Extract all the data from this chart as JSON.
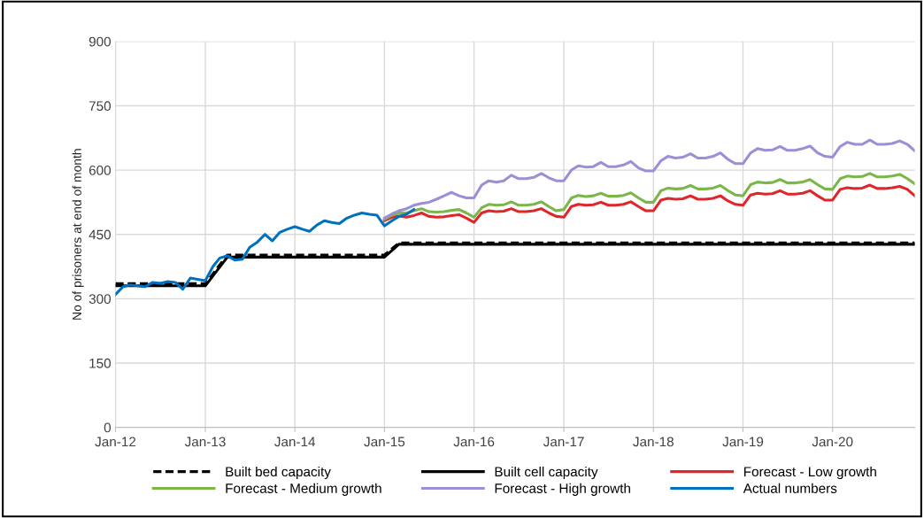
{
  "chart_data": {
    "type": "line",
    "ylabel": "No of prisoners at end of month",
    "ylim": [
      0,
      900
    ],
    "yticks": [
      0,
      150,
      300,
      450,
      600,
      750,
      900
    ],
    "xlim": [
      "2012-01",
      "2020-12"
    ],
    "xticks": [
      {
        "value": "2012-01",
        "label": "Jan-12"
      },
      {
        "value": "2013-01",
        "label": "Jan-13"
      },
      {
        "value": "2014-01",
        "label": "Jan-14"
      },
      {
        "value": "2015-01",
        "label": "Jan-15"
      },
      {
        "value": "2016-01",
        "label": "Jan-16"
      },
      {
        "value": "2017-01",
        "label": "Jan-17"
      },
      {
        "value": "2018-01",
        "label": "Jan-18"
      },
      {
        "value": "2019-01",
        "label": "Jan-19"
      },
      {
        "value": "2020-01",
        "label": "Jan-20"
      }
    ],
    "grid": true,
    "legend": "bottom",
    "marker": "none",
    "x": [
      "2015-01",
      "2015-02",
      "2015-03",
      "2015-04",
      "2015-05",
      "2015-06",
      "2015-07",
      "2015-08",
      "2015-09",
      "2015-10",
      "2015-11",
      "2015-12",
      "2016-01",
      "2016-02",
      "2016-03",
      "2016-04",
      "2016-05",
      "2016-06",
      "2016-07",
      "2016-08",
      "2016-09",
      "2016-10",
      "2016-11",
      "2016-12",
      "2017-01",
      "2017-02",
      "2017-03",
      "2017-04",
      "2017-05",
      "2017-06",
      "2017-07",
      "2017-08",
      "2017-09",
      "2017-10",
      "2017-11",
      "2017-12",
      "2018-01",
      "2018-02",
      "2018-03",
      "2018-04",
      "2018-05",
      "2018-06",
      "2018-07",
      "2018-08",
      "2018-09",
      "2018-10",
      "2018-11",
      "2018-12",
      "2019-01",
      "2019-02",
      "2019-03",
      "2019-04",
      "2019-05",
      "2019-06",
      "2019-07",
      "2019-08",
      "2019-09",
      "2019-10",
      "2019-11",
      "2019-12",
      "2020-01",
      "2020-02",
      "2020-03",
      "2020-04",
      "2020-05",
      "2020-06",
      "2020-07",
      "2020-08",
      "2020-09",
      "2020-10",
      "2020-11",
      "2020-12"
    ],
    "series": [
      {
        "name": "Built bed capacity",
        "color": "#000000",
        "line_style": "dashed",
        "x": [
          "2012-01",
          "2013-01",
          "2013-04",
          "2015-01",
          "2015-03",
          "2020-12"
        ],
        "values": [
          335,
          335,
          402,
          402,
          430,
          430
        ]
      },
      {
        "name": "Built cell capacity",
        "color": "#000000",
        "line_style": "solid",
        "x": [
          "2012-01",
          "2013-01",
          "2013-04",
          "2015-01",
          "2015-03",
          "2020-12"
        ],
        "values": [
          330,
          330,
          397,
          397,
          427,
          427
        ]
      },
      {
        "name": "Forecast - Low growth",
        "color": "#e0262b",
        "line_style": "solid",
        "values": [
          482,
          490,
          493,
          490,
          494,
          500,
          492,
          490,
          491,
          494,
          496,
          488,
          478,
          500,
          505,
          503,
          504,
          510,
          503,
          503,
          505,
          510,
          500,
          492,
          490,
          515,
          520,
          518,
          519,
          525,
          518,
          518,
          520,
          526,
          515,
          505,
          505,
          530,
          534,
          532,
          533,
          540,
          532,
          532,
          534,
          540,
          528,
          520,
          518,
          542,
          546,
          544,
          545,
          552,
          544,
          544,
          546,
          552,
          540,
          530,
          530,
          555,
          559,
          557,
          558,
          565,
          557,
          557,
          559,
          562,
          555,
          540
        ]
      },
      {
        "name": "Forecast - Medium growth",
        "color": "#7ab648",
        "line_style": "solid",
        "values": [
          485,
          495,
          500,
          500,
          505,
          510,
          503,
          502,
          503,
          506,
          508,
          500,
          490,
          512,
          520,
          518,
          519,
          526,
          518,
          518,
          520,
          526,
          515,
          505,
          508,
          535,
          541,
          538,
          540,
          546,
          539,
          539,
          541,
          547,
          535,
          525,
          525,
          552,
          558,
          556,
          557,
          564,
          556,
          556,
          558,
          564,
          552,
          542,
          540,
          566,
          572,
          570,
          571,
          578,
          570,
          570,
          572,
          578,
          566,
          556,
          555,
          580,
          586,
          584,
          585,
          592,
          584,
          584,
          586,
          590,
          580,
          568
        ]
      },
      {
        "name": "Forecast - High growth",
        "color": "#9b8fd6",
        "line_style": "solid",
        "values": [
          488,
          498,
          505,
          510,
          518,
          522,
          525,
          532,
          540,
          548,
          540,
          535,
          535,
          565,
          575,
          572,
          575,
          588,
          580,
          580,
          583,
          592,
          582,
          575,
          575,
          600,
          610,
          607,
          608,
          618,
          608,
          608,
          612,
          620,
          605,
          598,
          598,
          622,
          632,
          628,
          630,
          638,
          628,
          628,
          632,
          640,
          625,
          615,
          615,
          640,
          650,
          646,
          647,
          655,
          646,
          646,
          650,
          656,
          640,
          632,
          630,
          655,
          665,
          660,
          660,
          670,
          660,
          660,
          662,
          668,
          660,
          645
        ]
      },
      {
        "name": "Actual numbers",
        "color": "#0070c0",
        "line_style": "solid",
        "x": [
          "2012-01",
          "2012-02",
          "2012-03",
          "2012-04",
          "2012-05",
          "2012-06",
          "2012-07",
          "2012-08",
          "2012-09",
          "2012-10",
          "2012-11",
          "2012-12",
          "2013-01",
          "2013-02",
          "2013-03",
          "2013-04",
          "2013-05",
          "2013-06",
          "2013-07",
          "2013-08",
          "2013-09",
          "2013-10",
          "2013-11",
          "2013-12",
          "2014-01",
          "2014-02",
          "2014-03",
          "2014-04",
          "2014-05",
          "2014-06",
          "2014-07",
          "2014-08",
          "2014-09",
          "2014-10",
          "2014-11",
          "2014-12",
          "2015-01",
          "2015-02",
          "2015-03",
          "2015-04",
          "2015-05"
        ],
        "values": [
          310,
          328,
          332,
          330,
          328,
          338,
          336,
          340,
          338,
          322,
          348,
          345,
          342,
          375,
          395,
          400,
          390,
          392,
          420,
          432,
          450,
          435,
          455,
          462,
          468,
          462,
          457,
          472,
          482,
          478,
          475,
          488,
          495,
          500,
          497,
          495,
          470,
          482,
          492,
          497,
          508
        ]
      }
    ]
  }
}
